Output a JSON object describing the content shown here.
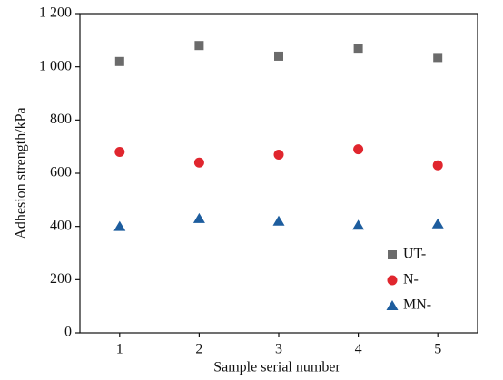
{
  "chart_data": {
    "type": "scatter",
    "xlabel": "Sample serial number",
    "ylabel": "Adhesion strength/kPa",
    "x": [
      1,
      2,
      3,
      4,
      5
    ],
    "series": [
      {
        "name": "UT-",
        "color": "#6b6b6b",
        "marker": "square",
        "values": [
          1020,
          1080,
          1040,
          1070,
          1035
        ]
      },
      {
        "name": "N-",
        "color": "#e0262e",
        "marker": "circle",
        "values": [
          680,
          640,
          670,
          690,
          630
        ]
      },
      {
        "name": "MN-",
        "color": "#1d5d9e",
        "marker": "triangle",
        "values": [
          400,
          430,
          420,
          405,
          410
        ]
      }
    ],
    "xlim": [
      0.5,
      5.5
    ],
    "xticks": [
      1,
      2,
      3,
      4,
      5
    ],
    "ylim": [
      0,
      1200
    ],
    "yticks": [
      0,
      200,
      400,
      600,
      800,
      {
        "value": 1000,
        "label": "1 000"
      },
      {
        "value": 1200,
        "label": "1 200"
      }
    ],
    "legend": "lower-right"
  }
}
